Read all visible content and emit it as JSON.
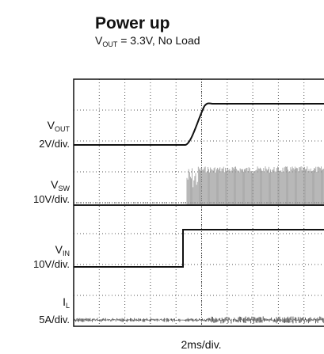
{
  "header": {
    "title": "Power up",
    "subtitle": {
      "symbol": "V",
      "subscript": "OUT",
      "rest": " = 3.3V, No Load"
    }
  },
  "channels": [
    {
      "symbol": "V",
      "subscript": "OUT",
      "scale": "2V/div."
    },
    {
      "symbol": "V",
      "subscript": "SW",
      "scale": "10V/div."
    },
    {
      "symbol": "V",
      "subscript": "IN",
      "scale": "10V/div."
    },
    {
      "symbol": "I",
      "subscript": "L",
      "scale": "5A/div."
    }
  ],
  "timebase": "2ms/div."
}
